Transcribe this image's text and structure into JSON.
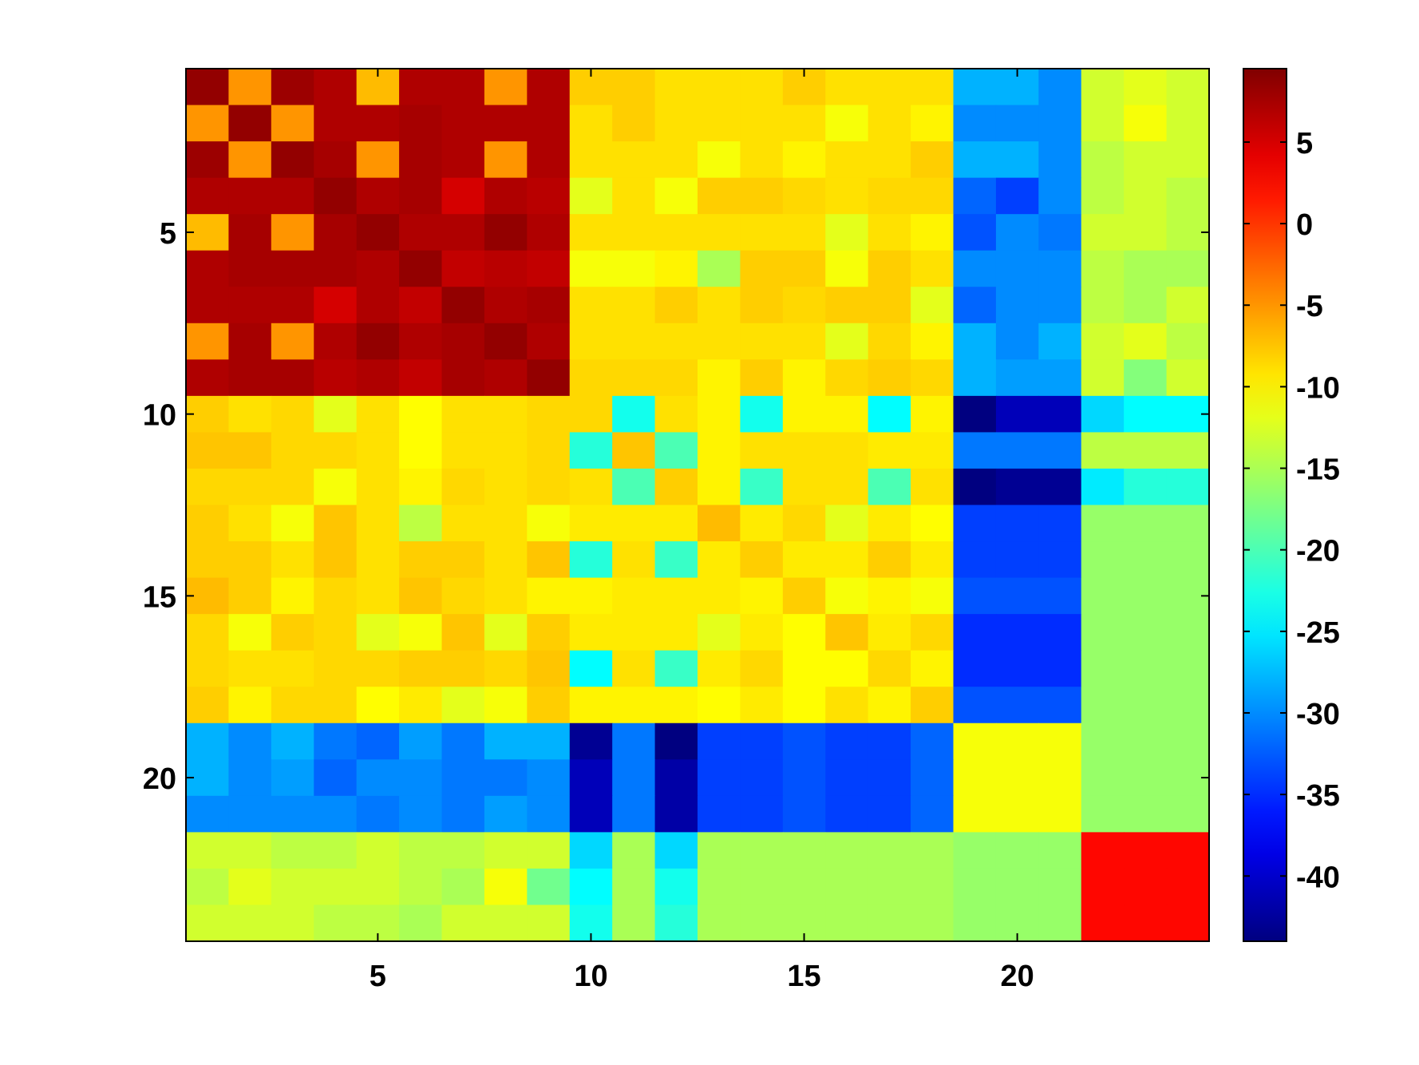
{
  "chart_data": {
    "type": "heatmap",
    "title": "",
    "xlabel": "",
    "ylabel": "",
    "n_rows": 24,
    "n_cols": 24,
    "x_ticks": [
      "5",
      "10",
      "15",
      "20"
    ],
    "x_tick_values": [
      5,
      10,
      15,
      20
    ],
    "y_ticks": [
      "5",
      "10",
      "15",
      "20"
    ],
    "y_tick_values": [
      5,
      10,
      15,
      20
    ],
    "colorbar": {
      "colormap": "jet",
      "range": [
        -44,
        9.5
      ],
      "tick_labels": [
        "5",
        "0",
        "-5",
        "-10",
        "-15",
        "-20",
        "-25",
        "-30",
        "-35",
        "-40"
      ],
      "tick_values": [
        5,
        0,
        -5,
        -10,
        -15,
        -20,
        -25,
        -30,
        -35,
        -40
      ]
    },
    "values": [
      [
        8.5,
        -5,
        8,
        7,
        -7,
        7,
        7,
        -5,
        7,
        -8,
        -8,
        -9,
        -9,
        -9,
        -8,
        -9,
        -9,
        -9,
        -28,
        -28,
        -30,
        -13,
        -12,
        -13
      ],
      [
        -5,
        8.5,
        -5,
        7,
        7,
        7.5,
        7,
        7,
        7,
        -9,
        -8,
        -9,
        -9,
        -9,
        -9,
        -11,
        -9,
        -10,
        -30,
        -30,
        -30,
        -13,
        -11,
        -13
      ],
      [
        8,
        -5,
        8.5,
        7.5,
        -5,
        7.5,
        7,
        -5,
        7,
        -9,
        -9,
        -9,
        -11,
        -9,
        -10,
        -9,
        -9,
        -8,
        -28,
        -28,
        -30,
        -14,
        -13,
        -13
      ],
      [
        7,
        7,
        7,
        8.5,
        7,
        7.5,
        5,
        7,
        6.5,
        -12,
        -9,
        -11,
        -8,
        -8,
        -8.5,
        -9,
        -8.5,
        -8.5,
        -32,
        -34,
        -30,
        -14,
        -13,
        -14
      ],
      [
        -7,
        7.5,
        -5,
        7.5,
        8.5,
        7,
        7,
        8.5,
        7,
        -9,
        -9,
        -9,
        -9,
        -9,
        -9,
        -12,
        -9,
        -10,
        -33,
        -30,
        -31,
        -13,
        -13,
        -14
      ],
      [
        7,
        7.5,
        7.5,
        7.5,
        7,
        8.5,
        6,
        6.5,
        6,
        -11,
        -11,
        -10,
        -15,
        -8,
        -8,
        -11,
        -8,
        -9,
        -30,
        -30,
        -30,
        -14,
        -15,
        -15
      ],
      [
        7,
        7,
        7,
        5,
        7,
        6,
        8.5,
        7,
        7.5,
        -9,
        -9,
        -8,
        -9,
        -8,
        -8.5,
        -8,
        -8,
        -12,
        -32,
        -30,
        -30,
        -14,
        -15,
        -13
      ],
      [
        -5,
        7.5,
        -5,
        7,
        8.5,
        7,
        7.5,
        8.5,
        7,
        -9,
        -9,
        -9,
        -9,
        -9,
        -9,
        -12,
        -8.5,
        -10,
        -28,
        -30,
        -28,
        -13,
        -12,
        -14
      ],
      [
        7,
        7.5,
        7.5,
        6.5,
        7,
        6,
        7.5,
        7,
        8.5,
        -8.5,
        -8.5,
        -8.5,
        -10,
        -8,
        -10,
        -8.5,
        -8,
        -8.5,
        -28,
        -29,
        -29,
        -13,
        -17,
        -13
      ],
      [
        -8,
        -9,
        -8.5,
        -12,
        -9,
        -10.5,
        -9,
        -9,
        -8.5,
        -8.5,
        -23,
        -9,
        -10,
        -23,
        -10,
        -10,
        -24,
        -10,
        -44,
        -41,
        -41,
        -26,
        -24,
        -24
      ],
      [
        -7.5,
        -7.5,
        -8.5,
        -8.5,
        -9,
        -10.5,
        -9,
        -9,
        -8.5,
        -22,
        -7.5,
        -20,
        -10,
        -9,
        -9,
        -9,
        -9.5,
        -9.5,
        -31,
        -31,
        -31,
        -14,
        -14,
        -14
      ],
      [
        -8.5,
        -8.5,
        -8.5,
        -11,
        -9,
        -10,
        -8.5,
        -9,
        -8.5,
        -9,
        -20,
        -8,
        -10,
        -21,
        -9,
        -9,
        -20,
        -9,
        -44,
        -43,
        -43,
        -25,
        -22,
        -22
      ],
      [
        -8,
        -9,
        -11,
        -7.5,
        -9,
        -14,
        -9,
        -9,
        -11,
        -9.5,
        -9.5,
        -9.5,
        -7,
        -9.5,
        -8.5,
        -12,
        -9.5,
        -10.5,
        -34,
        -34,
        -34,
        -16,
        -16,
        -16
      ],
      [
        -8,
        -8,
        -9,
        -7.5,
        -9,
        -8,
        -8,
        -9,
        -7.5,
        -22,
        -9,
        -21,
        -9.5,
        -8,
        -9.5,
        -9.5,
        -8,
        -9.5,
        -34,
        -34,
        -34,
        -16,
        -16,
        -16
      ],
      [
        -7,
        -8,
        -10,
        -8.5,
        -9,
        -7.5,
        -8.5,
        -9,
        -10,
        -10,
        -9.5,
        -9.5,
        -9.5,
        -10,
        -8,
        -11,
        -10,
        -11,
        -33,
        -33,
        -33,
        -16,
        -16,
        -16
      ],
      [
        -8.5,
        -11,
        -8,
        -8.5,
        -12,
        -11,
        -7.5,
        -12,
        -8,
        -9.5,
        -9.5,
        -9.5,
        -12,
        -9.5,
        -10.5,
        -7.5,
        -9.5,
        -8.5,
        -35,
        -35,
        -35,
        -16,
        -16,
        -16
      ],
      [
        -8.5,
        -9,
        -9,
        -8.5,
        -8.5,
        -8,
        -8,
        -8.5,
        -7.5,
        -24,
        -9,
        -21,
        -9.5,
        -8.5,
        -10.5,
        -10.5,
        -8.5,
        -10,
        -35,
        -35,
        -35,
        -16,
        -16,
        -16
      ],
      [
        -8,
        -10,
        -8.5,
        -8.5,
        -10.5,
        -9.5,
        -12,
        -11,
        -8,
        -10,
        -10,
        -10,
        -10.5,
        -9.5,
        -10.5,
        -9,
        -10,
        -8,
        -33,
        -33,
        -33,
        -16,
        -16,
        -16
      ],
      [
        -28,
        -30,
        -28,
        -31,
        -32,
        -29,
        -31,
        -28,
        -28,
        -43,
        -31,
        -44,
        -34,
        -34,
        -33,
        -34,
        -34,
        -32,
        -11,
        -11,
        -11,
        -16,
        -16,
        -16
      ],
      [
        -28,
        -30,
        -29,
        -32,
        -30,
        -30,
        -31,
        -31,
        -30,
        -41,
        -31,
        -42,
        -34,
        -34,
        -33,
        -34,
        -34,
        -32,
        -11,
        -11,
        -11,
        -16,
        -16,
        -16
      ],
      [
        -30,
        -30,
        -30,
        -30,
        -31,
        -30,
        -31,
        -29,
        -30,
        -41,
        -31,
        -42,
        -34,
        -34,
        -33,
        -34,
        -34,
        -32,
        -11,
        -11,
        -11,
        -16,
        -16,
        -16
      ],
      [
        -13,
        -13,
        -14,
        -14,
        -13,
        -14,
        -14,
        -13,
        -13,
        -26,
        -15,
        -26,
        -15,
        -15,
        -15,
        -15,
        -15,
        -15,
        -16,
        -16,
        -16,
        2.5,
        2.5,
        2.5
      ],
      [
        -14,
        -12,
        -13,
        -13,
        -13,
        -14,
        -15,
        -11,
        -18,
        -24,
        -15,
        -23,
        -15,
        -15,
        -15,
        -15,
        -15,
        -15,
        -16,
        -16,
        -16,
        2.5,
        2.5,
        2.5
      ],
      [
        -13,
        -13,
        -13,
        -14,
        -14,
        -15,
        -13,
        -13,
        -13,
        -23,
        -15,
        -22,
        -15,
        -15,
        -15,
        -15,
        -15,
        -15,
        -16,
        -16,
        -16,
        2.5,
        2.5,
        2.5
      ]
    ]
  }
}
